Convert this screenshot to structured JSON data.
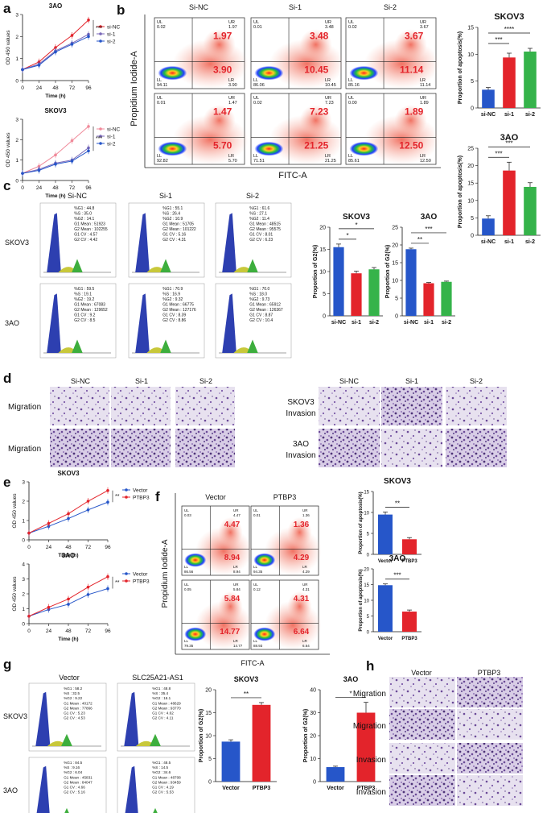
{
  "panel_labels": {
    "a": "a",
    "b": "b",
    "c": "c",
    "d": "d",
    "e": "e",
    "f": "f",
    "g": "g",
    "h": "h"
  },
  "colors": {
    "blue": "#2656c9",
    "red": "#e3242b",
    "green": "#35b34a",
    "pink": "#f08a9a",
    "purple": "#7a68b8",
    "teal": "#1e8b8b"
  },
  "axis_labels": {
    "od": "OD 450 values",
    "time": "Time (h)",
    "apoptosis": "Proportion of apoptosis(%)",
    "g2": "Proportion of G2(%)",
    "pi": "Propidium Iodide-A",
    "fitc": "FITC-A"
  },
  "panel_a": {
    "charts": [
      {
        "title": "3AO",
        "type": "line",
        "x": [
          0,
          24,
          48,
          72,
          96
        ],
        "ylim": [
          0,
          3
        ],
        "yticks": [
          "0",
          "1",
          "2",
          "3"
        ],
        "series": [
          {
            "name": "si-NC",
            "color": "#e3242b",
            "values": [
              0.5,
              0.85,
              1.5,
              2.05,
              2.75
            ]
          },
          {
            "name": "si-1",
            "color": "#7a68b8",
            "values": [
              0.5,
              0.75,
              1.35,
              1.7,
              2.1
            ]
          },
          {
            "name": "si-2",
            "color": "#2656c9",
            "values": [
              0.5,
              0.7,
              1.3,
              1.65,
              2.0
            ]
          }
        ],
        "sig": "***"
      },
      {
        "title": "SKOV3",
        "type": "line",
        "x": [
          0,
          24,
          48,
          72,
          96
        ],
        "ylim": [
          0,
          3
        ],
        "yticks": [
          "0",
          "1",
          "2",
          "3"
        ],
        "series": [
          {
            "name": "si-NC",
            "color": "#f08a9a",
            "values": [
              0.35,
              0.7,
              1.25,
              1.95,
              2.65
            ]
          },
          {
            "name": "si-1",
            "color": "#7a68b8",
            "values": [
              0.35,
              0.55,
              0.85,
              1.0,
              1.6
            ]
          },
          {
            "name": "si-2",
            "color": "#2656c9",
            "values": [
              0.35,
              0.5,
              0.8,
              0.95,
              1.45
            ]
          }
        ],
        "sig": "***"
      }
    ]
  },
  "panel_b": {
    "columns": [
      "Si-NC",
      "Si-1",
      "Si-2"
    ],
    "rows": [
      [
        {
          "UL": "0.02",
          "UR": "1.97",
          "LL": "94.11",
          "LR": "3.90",
          "big_ur": "1.97",
          "big_lr": "3.90"
        },
        {
          "UL": "0.01",
          "UR": "3.48",
          "LL": "86.06",
          "LR": "10.45",
          "big_ur": "3.48",
          "big_lr": "10.45"
        },
        {
          "UL": "0.02",
          "UR": "3.67",
          "LL": "85.16",
          "LR": "11.14",
          "big_ur": "3.67",
          "big_lr": "11.14"
        }
      ],
      [
        {
          "UL": "0.01",
          "UR": "1.47",
          "LL": "92.82",
          "LR": "5.70",
          "big_ur": "1.47",
          "big_lr": "5.70"
        },
        {
          "UL": "0.02",
          "UR": "7.23",
          "LL": "71.51",
          "LR": "21.25",
          "big_ur": "7.23",
          "big_lr": "21.25"
        },
        {
          "UL": "0.00",
          "UR": "1.89",
          "LL": "85.61",
          "LR": "12.50",
          "big_ur": "1.89",
          "big_lr": "12.50"
        }
      ]
    ],
    "quad": {
      "ul": "UL",
      "ur": "UR",
      "ll": "LL",
      "lr": "LR"
    }
  },
  "panel_b_bars": [
    {
      "title": "SKOV3",
      "type": "bar",
      "categories": [
        "si-NC",
        "si-1",
        "si-2"
      ],
      "values": [
        3.4,
        9.4,
        10.5
      ],
      "errors": [
        0.4,
        0.8,
        0.6
      ],
      "ylim": [
        0,
        15
      ],
      "yticks": [
        "0",
        "5",
        "10",
        "15"
      ],
      "colors": [
        "#2656c9",
        "#e3242b",
        "#35b34a"
      ],
      "sigs": [
        {
          "from": 0,
          "to": 1,
          "label": "***"
        },
        {
          "from": 0,
          "to": 2,
          "label": "****"
        }
      ]
    },
    {
      "title": "3AO",
      "type": "bar",
      "categories": [
        "si-NC",
        "si-1",
        "si-2"
      ],
      "values": [
        4.8,
        18.6,
        13.9
      ],
      "errors": [
        0.8,
        2.4,
        1.2
      ],
      "ylim": [
        0,
        25
      ],
      "yticks": [
        "0",
        "5",
        "10",
        "15",
        "20",
        "25"
      ],
      "colors": [
        "#2656c9",
        "#e3242b",
        "#35b34a"
      ],
      "sigs": [
        {
          "from": 0,
          "to": 1,
          "label": "***"
        },
        {
          "from": 0,
          "to": 2,
          "label": "***"
        }
      ]
    }
  ],
  "panel_c": {
    "columns": [
      "Si-NC",
      "Si-1",
      "Si-2"
    ],
    "rows": [
      "SKOV3",
      "3AO"
    ],
    "stats": [
      [
        [
          "%G1 : 44.8",
          "%S : 35.0",
          "%G2 : 14.1",
          "G1 Mean : 51923",
          "G2 Mean : 102255",
          "G1 CV : 4.57",
          "G2 CV : 4.42"
        ],
        [
          "%G1 : 55.1",
          "%S : 26.4",
          "%G2 : 10.9",
          "G1 Mean : 51705",
          "G2 Mean : 101222",
          "G1 CV : 5.16",
          "G2 CV : 4.31"
        ],
        [
          "%G1 : 61.6",
          "%S : 27.1",
          "%G2 : 11.4",
          "G1 Mean : 48515",
          "G2 Mean : 95575",
          "G1 CV : 8.01",
          "G2 CV : 6.23"
        ]
      ],
      [
        [
          "%G1 : 59.5",
          "%S : 19.1",
          "%G2 : 19.2",
          "G1 Mean : 67083",
          "G2 Mean : 129652",
          "G1 CV : 9.2",
          "G2 CV : 8.5"
        ],
        [
          "%G1 : 70.9",
          "%S : 16.9",
          "%G2 : 9.32",
          "G1 Mean : 66775",
          "G2 Mean : 127176",
          "G1 CV : 8.39",
          "G2 CV : 8.86"
        ],
        [
          "%G1 : 70.0",
          "%S : 18.0",
          "%G2 : 9.73",
          "G1 Mean : 65912",
          "G2 Mean : 126367",
          "G1 CV : 8.87",
          "G2 CV : 10.4"
        ]
      ]
    ]
  },
  "panel_c_bars": [
    {
      "title": "SKOV3",
      "type": "bar",
      "categories": [
        "si-NC",
        "si-1",
        "si-2"
      ],
      "values": [
        15.5,
        9.6,
        10.5
      ],
      "errors": [
        0.7,
        0.5,
        0.4
      ],
      "ylim": [
        0,
        20
      ],
      "yticks": [
        "0",
        "5",
        "10",
        "15",
        "20"
      ],
      "colors": [
        "#2656c9",
        "#e3242b",
        "#35b34a"
      ],
      "sigs": [
        {
          "from": 0,
          "to": 1,
          "label": "*"
        },
        {
          "from": 0,
          "to": 2,
          "label": "*"
        }
      ]
    },
    {
      "title": "3AO",
      "type": "bar",
      "categories": [
        "si-NC",
        "si-1",
        "si-2"
      ],
      "values": [
        18.8,
        9.2,
        9.6
      ],
      "errors": [
        0.3,
        0.2,
        0.2
      ],
      "ylim": [
        0,
        25
      ],
      "yticks": [
        "0",
        "5",
        "10",
        "15",
        "20",
        "25"
      ],
      "colors": [
        "#2656c9",
        "#e3242b",
        "#35b34a"
      ],
      "sigs": [
        {
          "from": 0,
          "to": 1,
          "label": "**"
        },
        {
          "from": 0,
          "to": 2,
          "label": "***"
        }
      ]
    }
  ],
  "panel_d": {
    "columns": [
      "Si-NC",
      "Si-1",
      "Si-2"
    ],
    "left_rows": [
      "Migration",
      "Migration"
    ],
    "right_rows": [
      [
        "SKOV3",
        "Invasion"
      ],
      [
        "3AO",
        "Invasion"
      ]
    ]
  },
  "panel_e": {
    "charts": [
      {
        "title": "SKOV3",
        "type": "line",
        "x": [
          0,
          24,
          48,
          72,
          96
        ],
        "ylim": [
          0,
          3
        ],
        "yticks": [
          "0",
          "1",
          "2",
          "3"
        ],
        "series": [
          {
            "name": "Vector",
            "color": "#2656c9",
            "values": [
              0.35,
              0.7,
              1.1,
              1.55,
              1.95
            ]
          },
          {
            "name": "PTBP3",
            "color": "#e3242b",
            "values": [
              0.35,
              0.85,
              1.35,
              2.0,
              2.55
            ]
          }
        ],
        "sig": "**"
      },
      {
        "title": "3AO",
        "type": "line",
        "x": [
          0,
          24,
          48,
          72,
          96
        ],
        "ylim": [
          0,
          4
        ],
        "yticks": [
          "0",
          "1",
          "2",
          "3",
          "4"
        ],
        "series": [
          {
            "name": "Vector",
            "color": "#2656c9",
            "values": [
              0.5,
              0.95,
              1.3,
              1.95,
              2.35
            ]
          },
          {
            "name": "PTBP3",
            "color": "#e3242b",
            "values": [
              0.5,
              1.1,
              1.65,
              2.45,
              3.15
            ]
          }
        ],
        "sig": "**"
      }
    ]
  },
  "panel_f": {
    "columns": [
      "Vector",
      "PTBP3"
    ],
    "rows": [
      [
        {
          "UL": "0.03",
          "UR": "4.47",
          "LL": "86.56",
          "LR": "8.94",
          "big_ur": "4.47",
          "big_lr": "8.94"
        },
        {
          "UL": "0.01",
          "UR": "1.36",
          "LL": "94.35",
          "LR": "4.29",
          "big_ur": "1.36",
          "big_lr": "4.29"
        }
      ],
      [
        {
          "UL": "0.05",
          "UR": "5.84",
          "LL": "79.35",
          "LR": "14.77",
          "big_ur": "5.84",
          "big_lr": "14.77"
        },
        {
          "UL": "0.12",
          "UR": "4.31",
          "LL": "88.93",
          "LR": "6.64",
          "big_ur": "4.31",
          "big_lr": "6.64"
        }
      ]
    ]
  },
  "panel_f_bars": [
    {
      "title": "SKOV3",
      "type": "bar",
      "categories": [
        "Vector",
        "PTBP3"
      ],
      "values": [
        9.5,
        3.6
      ],
      "errors": [
        0.6,
        0.4
      ],
      "ylim": [
        0,
        15
      ],
      "yticks": [
        "0",
        "5",
        "10",
        "15"
      ],
      "colors": [
        "#2656c9",
        "#e3242b"
      ],
      "sigs": [
        {
          "from": 0,
          "to": 1,
          "label": "**"
        }
      ]
    },
    {
      "title": "3AO",
      "type": "bar",
      "categories": [
        "Vector",
        "PTBP3"
      ],
      "values": [
        14.8,
        6.4
      ],
      "errors": [
        0.4,
        0.5
      ],
      "ylim": [
        0,
        20
      ],
      "yticks": [
        "0",
        "5",
        "10",
        "15",
        "20"
      ],
      "colors": [
        "#2656c9",
        "#e3242b"
      ],
      "sigs": [
        {
          "from": 0,
          "to": 1,
          "label": "***"
        }
      ]
    }
  ],
  "panel_g": {
    "columns": [
      "Vector",
      "SLC25A21-AS1"
    ],
    "rows": [
      "SKOV3",
      "3AO"
    ],
    "stats": [
      [
        [
          "%G1 : 58.2",
          "%S : 32.5",
          "%G2 : 9.22",
          "G1 Mean : 40172",
          "G2 Mean : 77866",
          "G1 CV : 5.23",
          "G2 CV : 4.53"
        ],
        [
          "%G1 : 48.8",
          "%S : 35.4",
          "%G2 : 16.1",
          "G1 Mean : 48629",
          "G2 Mean : 93770",
          "G1 CV : 4.62",
          "G2 CV : 4.11"
        ]
      ],
      [
        [
          "%G1 : 84.5",
          "%S : 9.16",
          "%G2 : 6.04",
          "G1 Mean : 45831",
          "G2 Mean : 84047",
          "G1 CV : 4.66",
          "G2 CV : 5.16"
        ],
        [
          "%G1 : 48.5",
          "%S : 14.5",
          "%G2 : 34.6",
          "G1 Mean : 48708",
          "G2 Mean : 93459",
          "G1 CV : 4.19",
          "G2 CV : 5.53"
        ]
      ]
    ]
  },
  "panel_g_bars": [
    {
      "title": "SKOV3",
      "type": "bar",
      "categories": [
        "Vector",
        "PTBP3"
      ],
      "values": [
        8.7,
        16.7
      ],
      "errors": [
        0.4,
        0.5
      ],
      "ylim": [
        0,
        20
      ],
      "yticks": [
        "0",
        "5",
        "10",
        "15",
        "20"
      ],
      "colors": [
        "#2656c9",
        "#e3242b"
      ],
      "sigs": [
        {
          "from": 0,
          "to": 1,
          "label": "**"
        }
      ]
    },
    {
      "title": "3AO",
      "type": "bar",
      "categories": [
        "Vector",
        "PTBP3"
      ],
      "values": [
        6.3,
        30.0
      ],
      "errors": [
        0.4,
        4.5
      ],
      "ylim": [
        0,
        40
      ],
      "yticks": [
        "0",
        "10",
        "20",
        "30",
        "40"
      ],
      "colors": [
        "#2656c9",
        "#e3242b"
      ],
      "sigs": [
        {
          "from": 0,
          "to": 1,
          "label": "*"
        }
      ]
    }
  ],
  "panel_h": {
    "columns": [
      "Vector",
      "PTBP3"
    ],
    "rows": [
      "Migration",
      "Migration",
      "Invasion",
      "Invasion"
    ]
  }
}
